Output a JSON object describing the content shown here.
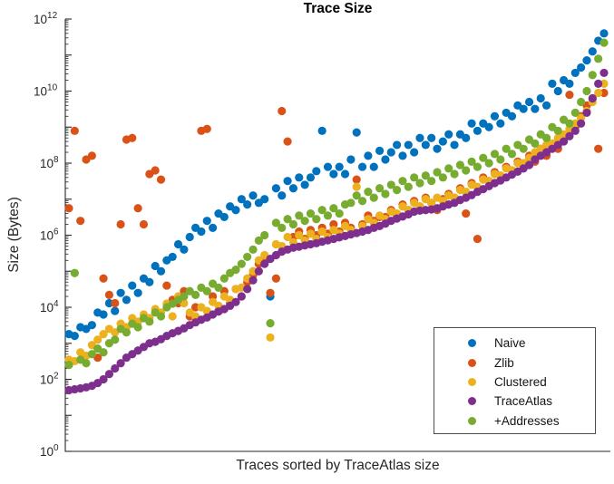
{
  "figure_background": "#ffffff",
  "axis_color": "#262626",
  "chart_data": {
    "type": "scatter",
    "title": "Trace Size",
    "xlabel": "Traces sorted by TraceAtlas size",
    "ylabel": "Size (Bytes)",
    "yscale": "log",
    "ylim": [
      1,
      1000000000000.0
    ],
    "ytick_labels": [
      "10^0",
      "10^2",
      "10^4",
      "10^6",
      "10^8",
      "10^10",
      "10^12"
    ],
    "ytick_exponents": [
      0,
      2,
      4,
      6,
      8,
      10,
      12
    ],
    "x_description": "trace index 1..94, sorted ascending by TraceAtlas size (no x tick labels shown)",
    "n_points": 94,
    "grid": false,
    "legend_position": "lower right",
    "marker": "filled-circle",
    "draw_order": [
      "Naive",
      "Zlib",
      "Clustered",
      "+Addresses",
      "TraceAtlas"
    ],
    "series": [
      {
        "name": "Naive",
        "color": "#0072BD",
        "values": [
          1800,
          1600,
          2800,
          2500,
          3200,
          7100,
          6300,
          13000.0,
          7900,
          25000.0,
          16000.0,
          40000.0,
          25000.0,
          63000.0,
          50000.0,
          140000.0,
          100000.0,
          200000.0,
          250000.0,
          560000.0,
          400000.0,
          890000.0,
          1600000.0,
          1260000.0,
          2500000.0,
          1600000.0,
          4000000.0,
          3200000.0,
          6300000.0,
          5000000.0,
          10000000.0,
          7100000.0,
          12600000.0,
          7900000.0,
          10000000.0,
          20000.0,
          20000000.0,
          12600000.0,
          32000000.0,
          20000000.0,
          40000000.0,
          25000000.0,
          40000000.0,
          60000000.0,
          790000000.0,
          79000000.0,
          50000000.0,
          79000000.0,
          50000000.0,
          126000000.0,
          710000000.0,
          79000000.0,
          160000000.0,
          79000000.0,
          220000000.0,
          126000000.0,
          200000000.0,
          320000000.0,
          160000000.0,
          320000000.0,
          200000000.0,
          500000000.0,
          320000000.0,
          500000000.0,
          250000000.0,
          400000000.0,
          630000000.0,
          320000000.0,
          630000000.0,
          500000000.0,
          1260000000.0,
          790000000.0,
          1260000000.0,
          1000000000.0,
          2000000000.0,
          1260000000.0,
          2500000000.0,
          2000000000.0,
          4000000000.0,
          3200000000.0,
          5000000000.0,
          3200000000.0,
          6300000000.0,
          4000000000.0,
          16000000000.0,
          10000000000.0,
          20000000000.0,
          16000000000.0,
          32000000000.0,
          45000000000.0,
          71000000000.0,
          126000000000.0,
          250000000000.0,
          400000000000.0
        ]
      },
      {
        "name": "Zlib",
        "color": "#D95319",
        "values": [
          5600000.0,
          790000000.0,
          2500000.0,
          126000000.0,
          160000000.0,
          400,
          63000.0,
          22000.0,
          13000.0,
          2000000.0,
          450000000.0,
          500000000.0,
          5600000.0,
          2000000.0,
          50000000.0,
          63000000.0,
          35000000.0,
          40000.0,
          16000.0,
          13000.0,
          28000.0,
          5600,
          10000.0,
          790000000.0,
          890000000.0,
          20000.0,
          7900,
          28000.0,
          13000.0,
          32000.0,
          20000.0,
          50000.0,
          79000.0,
          160000.0,
          220000.0,
          25000.0,
          63000.0,
          2800000000.0,
          400000000.0,
          890000.0,
          1260000.0,
          790000.0,
          1400000.0,
          1000000.0,
          1600000.0,
          1100000.0,
          2000000.0,
          1260000.0,
          2200000.0,
          1600000.0,
          35000000.0,
          2000000.0,
          3500000.0,
          2500000.0,
          3200000.0,
          3200000.0,
          5000000.0,
          3500000.0,
          7100000.0,
          5000000.0,
          8900000.0,
          6300000.0,
          11000000.0,
          7900000.0,
          5000000.0,
          10000000.0,
          14000000.0,
          11000000.0,
          20000000.0,
          4000000.0,
          28000000.0,
          790000.0,
          40000000.0,
          32000000.0,
          56000000.0,
          45000000.0,
          79000000.0,
          63000000.0,
          110000000.0,
          89000000.0,
          160000000.0,
          110000000.0,
          250000000.0,
          160000000.0,
          350000000.0,
          250000000.0,
          560000000.0,
          7900000000.0,
          1000000000.0,
          2000000000.0,
          4000000000.0,
          6300000000.0,
          250000000.0,
          8900000000.0
        ]
      },
      {
        "name": "Clustered",
        "color": "#EDB120",
        "values": [
          350,
          320,
          560,
          450,
          890,
          1260,
          1800,
          2500,
          2000,
          3500,
          2800,
          5000,
          4000,
          6300,
          5000,
          8900,
          7100,
          12600.0,
          5600,
          20000.0,
          13000.0,
          7100,
          5600,
          10000.0,
          7900,
          14000.0,
          11000.0,
          20000.0,
          16000.0,
          32000.0,
          35000.0,
          63000.0,
          100000.0,
          200000.0,
          280000.0,
          1450,
          560000.0,
          500000.0,
          890000.0,
          630000.0,
          1000000.0,
          710000.0,
          1100000.0,
          790000.0,
          1260000.0,
          890000.0,
          1400000.0,
          1100000.0,
          1800000.0,
          1400000.0,
          22000000.0,
          1800000.0,
          2800000.0,
          2200000.0,
          3500000.0,
          2800000.0,
          4500000.0,
          4000000.0,
          6300000.0,
          5000000.0,
          7900000.0,
          6300000.0,
          10000000.0,
          7900000.0,
          11000000.0,
          8900000.0,
          12600000.0,
          11000000.0,
          18000000.0,
          16000000.0,
          25000000.0,
          22000000.0,
          35000000.0,
          32000000.0,
          50000000.0,
          45000000.0,
          71000000.0,
          63000000.0,
          100000000.0,
          100000000.0,
          140000000.0,
          200000000.0,
          250000000.0,
          320000000.0,
          350000000.0,
          500000000.0,
          630000000.0,
          890000000.0,
          1260000000.0,
          1800000000.0,
          2800000000.0,
          5000000000.0,
          8900000000.0,
          16000000000.0
        ]
      },
      {
        "name": "TraceAtlas",
        "color": "#7E2F8E",
        "values": [
          50,
          53,
          56,
          60,
          66,
          79,
          100,
          140,
          200,
          280,
          400,
          500,
          630,
          790,
          1000,
          1100,
          1300,
          1600,
          1900,
          2200,
          2600,
          3200,
          3800,
          4500,
          5200,
          6300,
          7600,
          8900,
          11000.0,
          14000.0,
          20000.0,
          32000.0,
          56000.0,
          100000.0,
          160000.0,
          220000.0,
          280000.0,
          350000.0,
          400000.0,
          450000.0,
          480000.0,
          520000.0,
          560000.0,
          600000.0,
          660000.0,
          720000.0,
          790000.0,
          870000.0,
          950000.0,
          1050000.0,
          1150000.0,
          1260000.0,
          1400000.0,
          1600000.0,
          1800000.0,
          2100000.0,
          2500000.0,
          2900000.0,
          3300000.0,
          3800000.0,
          4500000.0,
          4800000.0,
          5000000.0,
          5200000.0,
          5600000.0,
          6300000.0,
          7100000.0,
          7900000.0,
          9500000.0,
          11000000.0,
          13000000.0,
          16000000.0,
          19000000.0,
          23000000.0,
          28000000.0,
          33000000.0,
          40000000.0,
          48000000.0,
          58000000.0,
          71000000.0,
          89000000.0,
          126000000.0,
          160000000.0,
          200000000.0,
          250000000.0,
          320000000.0,
          400000000.0,
          560000000.0,
          790000000.0,
          1260000000.0,
          2500000000.0,
          6300000000.0,
          16000000000.0,
          32000000000.0
        ]
      },
      {
        "name": "+Addresses",
        "color": "#77AC30",
        "values": [
          250,
          89000.0,
          350,
          280,
          500,
          710,
          560,
          1000,
          1260,
          2500,
          2000,
          3500,
          2800,
          5000,
          4000,
          7100,
          5600,
          10000.0,
          12600.0,
          16000.0,
          20000.0,
          28000.0,
          22000.0,
          35000.0,
          28000.0,
          45000.0,
          35000.0,
          63000.0,
          89000.0,
          110000.0,
          160000.0,
          250000.0,
          400000.0,
          710000.0,
          1000000.0,
          3600,
          2200000.0,
          1600000.0,
          2800000.0,
          2000000.0,
          3500000.0,
          2500000.0,
          4000000.0,
          2800000.0,
          5000000.0,
          3500000.0,
          5600000.0,
          4000000.0,
          7100000.0,
          7900000.0,
          12600000.0,
          8900000.0,
          16000000.0,
          11000000.0,
          20000000.0,
          14000000.0,
          25000000.0,
          18000000.0,
          32000000.0,
          22000000.0,
          40000000.0,
          28000000.0,
          45000000.0,
          32000000.0,
          56000000.0,
          40000000.0,
          71000000.0,
          50000000.0,
          89000000.0,
          63000000.0,
          110000000.0,
          79000000.0,
          140000000.0,
          100000000.0,
          180000000.0,
          126000000.0,
          250000000.0,
          180000000.0,
          320000000.0,
          250000000.0,
          450000000.0,
          350000000.0,
          630000000.0,
          500000000.0,
          1000000000.0,
          790000000.0,
          1600000000.0,
          1260000000.0,
          2500000000.0,
          5000000000.0,
          10000000000.0,
          28000000000.0,
          79000000000.0,
          220000000000.0
        ]
      }
    ]
  }
}
